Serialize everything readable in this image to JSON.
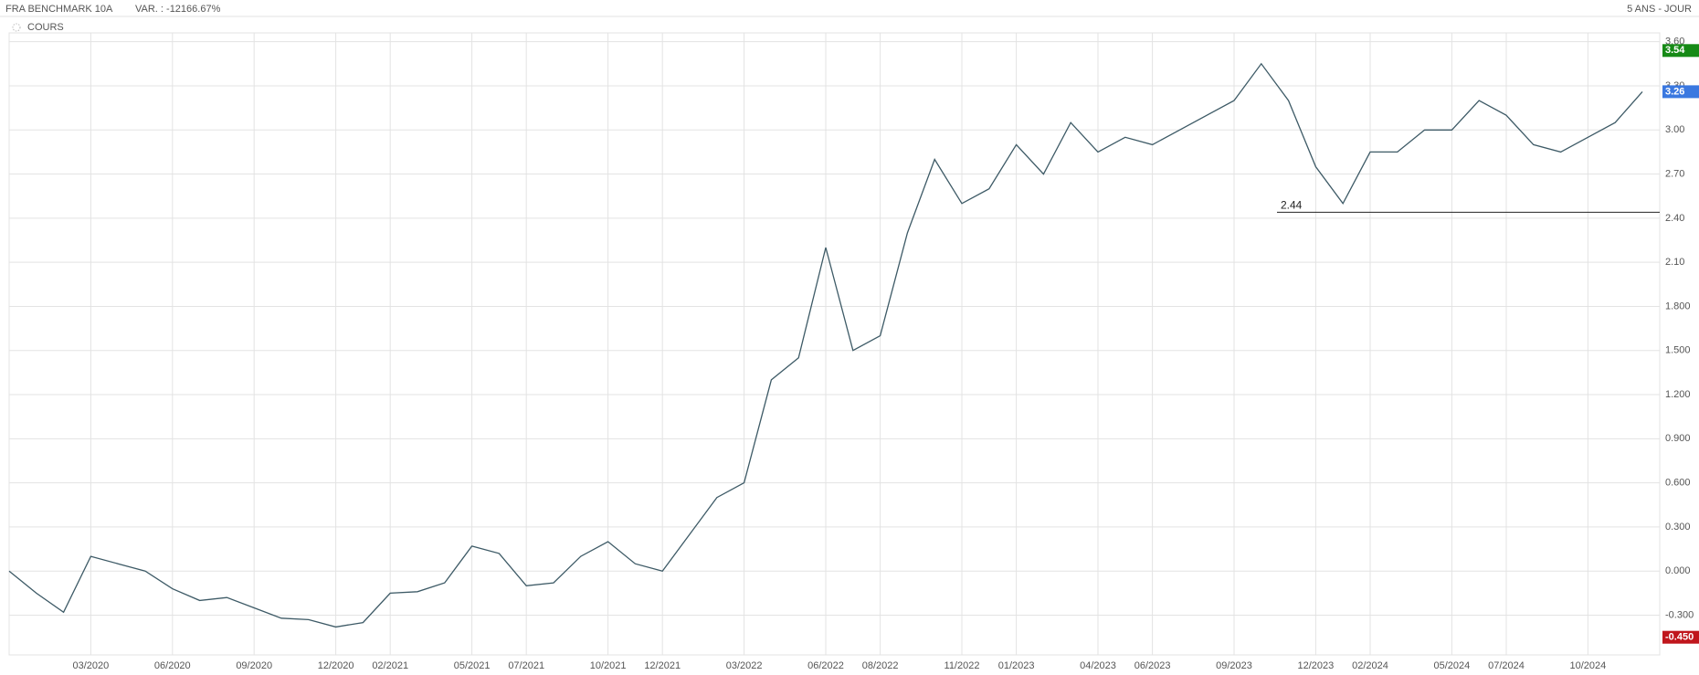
{
  "chart_data": {
    "type": "line",
    "title": "FRA BENCHMARK 10A",
    "subtitle": "VAR. : -12166.67%",
    "period": "5 ANS - JOUR",
    "x": [
      "12/2019",
      "01/2020",
      "02/2020",
      "03/2020",
      "04/2020",
      "05/2020",
      "06/2020",
      "07/2020",
      "08/2020",
      "09/2020",
      "10/2020",
      "11/2020",
      "12/2020",
      "01/2021",
      "02/2021",
      "03/2021",
      "04/2021",
      "05/2021",
      "06/2021",
      "07/2021",
      "08/2021",
      "09/2021",
      "10/2021",
      "11/2021",
      "12/2021",
      "01/2022",
      "02/2022",
      "03/2022",
      "04/2022",
      "05/2022",
      "06/2022",
      "07/2022",
      "08/2022",
      "09/2022",
      "10/2022",
      "11/2022",
      "12/2022",
      "01/2023",
      "02/2023",
      "03/2023",
      "04/2023",
      "05/2023",
      "06/2023",
      "07/2023",
      "08/2023",
      "09/2023",
      "10/2023",
      "11/2023",
      "12/2023",
      "01/2024",
      "02/2024",
      "03/2024",
      "04/2024",
      "05/2024",
      "06/2024",
      "07/2024",
      "08/2024",
      "09/2024",
      "10/2024",
      "11/2024",
      "12/2024"
    ],
    "series": [
      {
        "name": "COURS",
        "color": "#3d5a66",
        "values": [
          0.0,
          -0.15,
          -0.28,
          0.1,
          0.05,
          0.0,
          -0.12,
          -0.2,
          -0.18,
          -0.25,
          -0.32,
          -0.33,
          -0.38,
          -0.35,
          -0.15,
          -0.14,
          -0.08,
          0.17,
          0.12,
          -0.1,
          -0.08,
          0.1,
          0.2,
          0.05,
          0.0,
          0.25,
          0.5,
          0.6,
          1.3,
          1.45,
          2.2,
          1.5,
          1.6,
          2.3,
          2.8,
          2.5,
          2.6,
          2.9,
          2.7,
          3.05,
          2.85,
          2.95,
          2.9,
          3.0,
          3.1,
          3.2,
          3.45,
          3.2,
          2.75,
          2.5,
          2.85,
          2.85,
          3.0,
          3.0,
          3.2,
          3.1,
          2.9,
          2.85,
          2.95,
          3.05,
          3.26
        ]
      }
    ],
    "xticks": [
      "03/2020",
      "06/2020",
      "09/2020",
      "12/2020",
      "02/2021",
      "05/2021",
      "07/2021",
      "10/2021",
      "12/2021",
      "03/2022",
      "06/2022",
      "08/2022",
      "11/2022",
      "01/2023",
      "04/2023",
      "06/2023",
      "09/2023",
      "12/2023",
      "02/2024",
      "05/2024",
      "07/2024",
      "10/2024"
    ],
    "ylim": [
      -0.57,
      3.66
    ],
    "yticks": [
      {
        "value": -0.3,
        "label": "-0.300"
      },
      {
        "value": 0,
        "label": "0.000"
      },
      {
        "value": 0.3,
        "label": "0.300"
      },
      {
        "value": 0.6,
        "label": "0.600"
      },
      {
        "value": 0.9,
        "label": "0.900"
      },
      {
        "value": 1.2,
        "label": "1.200"
      },
      {
        "value": 1.5,
        "label": "1.500"
      },
      {
        "value": 1.8,
        "label": "1.800"
      },
      {
        "value": 2.1,
        "label": "2.10"
      },
      {
        "value": 2.4,
        "label": "2.40"
      },
      {
        "value": 2.7,
        "label": "2.70"
      },
      {
        "value": 3.0,
        "label": "3.00"
      },
      {
        "value": 3.3,
        "label": "3.30"
      },
      {
        "value": 3.6,
        "label": "3.60"
      }
    ],
    "grid": true,
    "price_labels": [
      {
        "value": 3.54,
        "label": "3.54",
        "color": "#168a16"
      },
      {
        "value": 3.26,
        "label": "3.26",
        "color": "#3a78e0"
      },
      {
        "value": -0.45,
        "label": "-0.450",
        "color": "#c0161c"
      }
    ],
    "annotation": {
      "value": 2.44,
      "label": "2.44"
    }
  }
}
